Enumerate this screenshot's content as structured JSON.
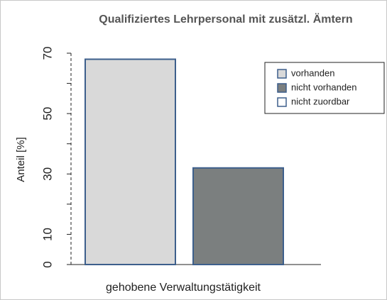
{
  "chart_data": {
    "type": "bar",
    "title": "Qualifiziertes Lehrpersonal mit zusätzl. Ämtern",
    "ylabel": "Anteil [%]",
    "categories": [
      "gehobene Verwaltungstätigkeit"
    ],
    "series": [
      {
        "name": "vorhanden",
        "color": "#d9d9d9",
        "values": [
          68
        ]
      },
      {
        "name": "nicht vorhanden",
        "color": "#7b7f7f",
        "values": [
          32
        ]
      },
      {
        "name": "nicht zuordbar",
        "color": "#ffffff",
        "values": [
          0
        ]
      }
    ],
    "edge_color": "#3d5f8c",
    "ylim": [
      0,
      70
    ],
    "yticks": [
      0,
      10,
      30,
      50,
      70
    ],
    "yticks_unlabeled": [
      20,
      40,
      60
    ],
    "legend": "top-right"
  }
}
